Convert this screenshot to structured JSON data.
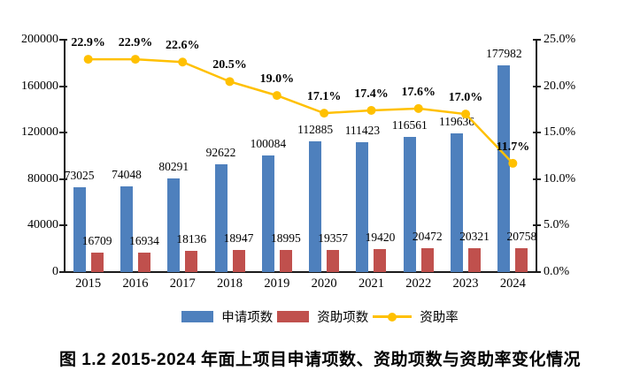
{
  "chart_data": {
    "type": "bar",
    "subtype": "bar+line-combo",
    "categories": [
      "2015",
      "2016",
      "2017",
      "2018",
      "2019",
      "2020",
      "2021",
      "2022",
      "2023",
      "2024"
    ],
    "series": [
      {
        "name": "申请项数",
        "type": "bar",
        "axis": "left",
        "color": "#4E80BD",
        "values": [
          73025,
          74048,
          80291,
          92622,
          100084,
          112885,
          111423,
          116561,
          119636,
          177982
        ]
      },
      {
        "name": "资助项数",
        "type": "bar",
        "axis": "left",
        "color": "#C0504D",
        "values": [
          16709,
          16934,
          18136,
          18947,
          18995,
          19357,
          19420,
          20472,
          20321,
          20758
        ]
      },
      {
        "name": "资助率",
        "type": "line",
        "axis": "right",
        "color": "#FFC000",
        "values": [
          22.9,
          22.9,
          22.6,
          20.5,
          19.0,
          17.1,
          17.4,
          17.6,
          17.0,
          11.7
        ],
        "labels": [
          "22.9%",
          "22.9%",
          "22.6%",
          "20.5%",
          "19.0%",
          "17.1%",
          "17.4%",
          "17.6%",
          "17.0%",
          "11.7%"
        ]
      }
    ],
    "left_axis": {
      "min": 0,
      "max": 200000,
      "tick_labels": [
        "0",
        "40000",
        "80000",
        "120000",
        "160000",
        "200000"
      ]
    },
    "right_axis": {
      "min": 0,
      "max": 25,
      "tick_labels": [
        "0.0%",
        "5.0%",
        "10.0%",
        "15.0%",
        "20.0%",
        "25.0%"
      ]
    },
    "grid": false,
    "legend_position": "bottom",
    "title": ""
  },
  "legend": {
    "items": [
      {
        "label": "申请项数",
        "swatch": "blue-bar-swatch"
      },
      {
        "label": "资助项数",
        "swatch": "red-bar-swatch"
      },
      {
        "label": "资助率",
        "swatch": "yellow-line-swatch"
      }
    ]
  },
  "caption": "图 1.2  2015-2024 年面上项目申请项数、资助项数与资助率变化情况"
}
